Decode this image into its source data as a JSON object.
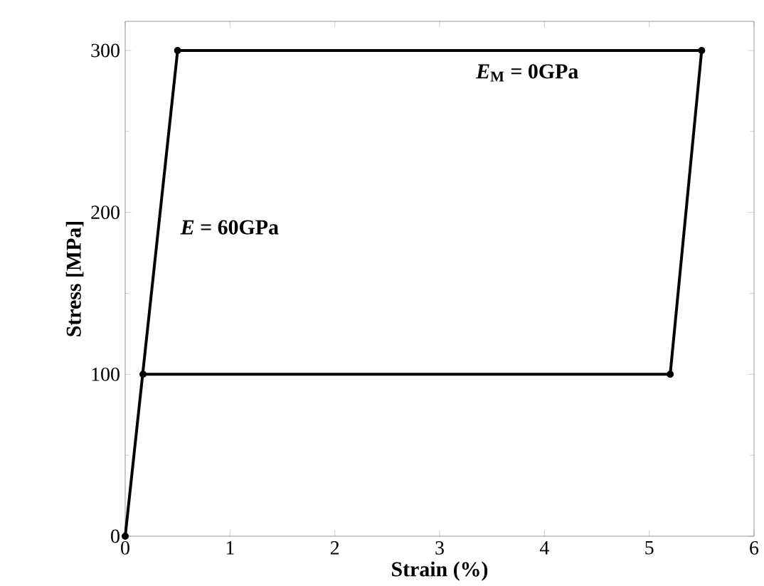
{
  "chart_data": {
    "type": "line",
    "xlabel": "Strain (%)",
    "ylabel": "Stress [MPa]",
    "x": [
      0,
      0.5,
      5.5,
      5.2,
      0.17
    ],
    "series": [
      {
        "color": "#000000",
        "values": [
          0,
          300,
          300,
          100,
          100
        ]
      }
    ],
    "xlim": [
      0,
      6
    ],
    "ylim": [
      0,
      318
    ],
    "xticks": [
      0,
      1,
      2,
      3,
      4,
      5,
      6
    ],
    "yticks": [
      0,
      100,
      200,
      300
    ],
    "marker": "circle",
    "line_style": "solid",
    "grid": false,
    "annotations": [
      "*E*$_{M}$ = 0GPa",
      "*E* = 60GPa"
    ]
  }
}
